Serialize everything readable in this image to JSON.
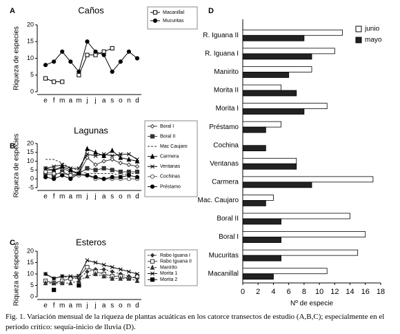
{
  "chart_data": [
    {
      "type": "line",
      "panel": "A",
      "title": "Caños",
      "ylabel": "Riqueza de especies",
      "categories": [
        "e",
        "f",
        "m",
        "a",
        "m",
        "j",
        "j",
        "a",
        "s",
        "o",
        "n",
        "d"
      ],
      "ylim": [
        0,
        20
      ],
      "yticks": [
        0,
        5,
        10,
        15,
        20
      ],
      "series": [
        {
          "name": "Macanillal",
          "color": "#000000",
          "marker": "square",
          "filled": false,
          "dash": false,
          "values": [
            4,
            3,
            3,
            null,
            5,
            11,
            11,
            12,
            13,
            null,
            null,
            null
          ]
        },
        {
          "name": "Mucuritas",
          "color": "#000000",
          "marker": "circle",
          "filled": true,
          "dash": false,
          "values": [
            8,
            9,
            12,
            9,
            6,
            15,
            12,
            11,
            6,
            9,
            12,
            10
          ]
        }
      ]
    },
    {
      "type": "line",
      "panel": "B",
      "title": "Lagunas",
      "ylabel": "Riqueza de especies",
      "categories": [
        "e",
        "f",
        "m",
        "a",
        "m",
        "j",
        "j",
        "a",
        "s",
        "o",
        "n",
        "d"
      ],
      "ylim": [
        -5,
        20
      ],
      "yticks": [
        -5,
        0,
        5,
        10,
        15,
        20
      ],
      "series": [
        {
          "name": "Boral I",
          "color": "#333333",
          "marker": "diamond",
          "filled": false,
          "dash": false,
          "values": [
            6,
            5,
            6,
            4,
            3,
            12,
            8,
            10,
            11,
            9,
            8,
            7
          ]
        },
        {
          "name": "Boral II",
          "color": "#333333",
          "marker": "square",
          "filled": true,
          "dash": false,
          "values": [
            3,
            2,
            4,
            2,
            3,
            6,
            5,
            6,
            5,
            4,
            4,
            4
          ]
        },
        {
          "name": "Mac Caujaro",
          "color": "#333333",
          "marker": "none",
          "filled": false,
          "dash": true,
          "values": [
            11,
            11,
            9,
            6,
            5,
            3,
            3,
            3,
            3,
            2,
            3,
            3
          ]
        },
        {
          "name": "Carmera",
          "color": "#000000",
          "marker": "triangle",
          "filled": true,
          "dash": false,
          "values": [
            5,
            5,
            7,
            5,
            3,
            17,
            15,
            13,
            16,
            12,
            11,
            10
          ]
        },
        {
          "name": "Ventanas",
          "color": "#000000",
          "marker": "x",
          "filled": false,
          "dash": false,
          "values": [
            6,
            7,
            8,
            6,
            6,
            14,
            13,
            14,
            13,
            14,
            14,
            11
          ]
        },
        {
          "name": "Cochinas",
          "color": "#555555",
          "marker": "circle",
          "filled": false,
          "dash": false,
          "values": [
            4,
            3,
            3,
            2,
            2,
            2,
            0,
            0,
            0,
            0,
            0,
            0
          ]
        },
        {
          "name": "Préstamo",
          "color": "#000000",
          "marker": "circle",
          "filled": true,
          "dash": false,
          "values": [
            1,
            0,
            2,
            0,
            3,
            2,
            1,
            0,
            1,
            1,
            2,
            1
          ]
        }
      ]
    },
    {
      "type": "line",
      "panel": "C",
      "title": "Esteros",
      "ylabel": "Riqueza de especies",
      "categories": [
        "e",
        "f",
        "m",
        "a",
        "m",
        "j",
        "j",
        "a",
        "s",
        "o",
        "n",
        "d"
      ],
      "ylim": [
        0,
        20
      ],
      "yticks": [
        0,
        5,
        10,
        15,
        20
      ],
      "series": [
        {
          "name": "Rabo Iguana I",
          "color": "#333333",
          "marker": "diamond",
          "filled": true,
          "dash": true,
          "values": [
            10,
            8,
            9,
            8,
            8,
            11,
            12,
            12,
            11,
            10,
            9,
            8
          ]
        },
        {
          "name": "Rabo Iguana II",
          "color": "#333333",
          "marker": "square",
          "filled": false,
          "dash": false,
          "values": [
            7,
            6,
            7,
            8,
            9,
            13,
            11,
            10,
            9,
            9,
            8,
            9
          ]
        },
        {
          "name": "Manirito",
          "color": "#333333",
          "marker": "triangle",
          "filled": true,
          "dash": true,
          "values": [
            6,
            6,
            6,
            6,
            7,
            9,
            10,
            9,
            8,
            8,
            8,
            7
          ]
        },
        {
          "name": "Morita 1",
          "color": "#000000",
          "marker": "x",
          "filled": false,
          "dash": false,
          "values": [
            10,
            8,
            9,
            9,
            9,
            16,
            15,
            14,
            13,
            12,
            11,
            10
          ]
        },
        {
          "name": "Morita 2",
          "color": "#000000",
          "marker": "square",
          "filled": true,
          "dash": false,
          "values": [
            null,
            3,
            null,
            null,
            5,
            null,
            null,
            null,
            null,
            null,
            null,
            null
          ]
        }
      ]
    },
    {
      "type": "hbar",
      "panel": "D",
      "xlabel": "Nº de especie",
      "legend": "upper right",
      "categories": [
        "R. Iguana II",
        "R. Iguana I",
        "Manirito",
        "Morita II",
        "Morita I",
        "Préstamo",
        "Cochina",
        "Ventanas",
        "Carmera",
        "Mac. Caujaro",
        "Boral II",
        "Boral I",
        "Mucuritas",
        "Macanillal"
      ],
      "xlim": [
        0,
        18
      ],
      "xticks": [
        0,
        2,
        4,
        6,
        8,
        10,
        12,
        14,
        16,
        18
      ],
      "series": [
        {
          "name": "junio",
          "color": "#ffffff",
          "values": [
            13,
            12,
            9,
            5,
            11,
            5,
            0,
            7,
            17,
            4,
            14,
            16,
            15,
            11
          ]
        },
        {
          "name": "mayo",
          "color": "#222222",
          "values": [
            8,
            9,
            6,
            7,
            8,
            3,
            3,
            7,
            9,
            3,
            5,
            5,
            5,
            4
          ]
        }
      ]
    }
  ],
  "caption": "Fig. 1. Variación mensual de la riqueza de plantas acuáticas en los catorce transectos de estudio (A,B,C); especialmente en el periodo crítico: sequía-inicio de lluvia (D)."
}
